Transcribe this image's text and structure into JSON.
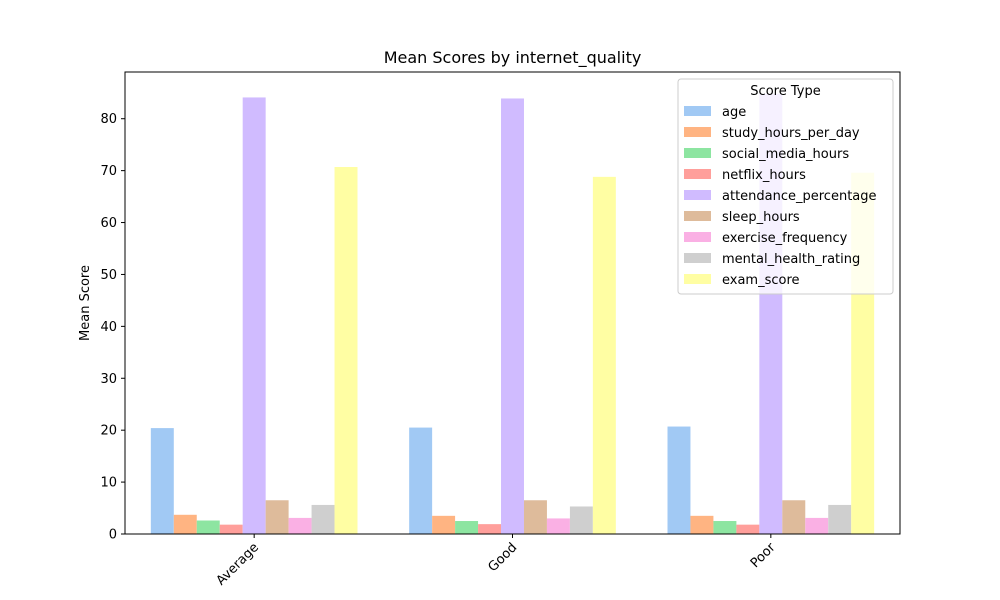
{
  "chart_data": {
    "type": "bar",
    "title": "Mean Scores by internet_quality",
    "xlabel": "",
    "ylabel": "Mean Score",
    "ylim": [
      0,
      89
    ],
    "yticks": [
      0,
      10,
      20,
      30,
      40,
      50,
      60,
      70,
      80
    ],
    "grid": false,
    "legend": {
      "title": "Score Type",
      "placement": "top-right"
    },
    "categories": [
      "Average",
      "Good",
      "Poor"
    ],
    "series": [
      {
        "name": "age",
        "color": "#a1c9f4",
        "values": [
          20.4,
          20.5,
          20.7
        ]
      },
      {
        "name": "study_hours_per_day",
        "color": "#ffb482",
        "values": [
          3.7,
          3.5,
          3.5
        ]
      },
      {
        "name": "social_media_hours",
        "color": "#8de5a1",
        "values": [
          2.6,
          2.5,
          2.5
        ]
      },
      {
        "name": "netflix_hours",
        "color": "#ff9f9b",
        "values": [
          1.8,
          1.9,
          1.8
        ]
      },
      {
        "name": "attendance_percentage",
        "color": "#d0bbff",
        "values": [
          84.1,
          83.9,
          84.8
        ]
      },
      {
        "name": "sleep_hours",
        "color": "#debb9b",
        "values": [
          6.5,
          6.5,
          6.5
        ]
      },
      {
        "name": "exercise_frequency",
        "color": "#fab0e4",
        "values": [
          3.1,
          3.0,
          3.1
        ]
      },
      {
        "name": "mental_health_rating",
        "color": "#cfcfcf",
        "values": [
          5.6,
          5.3,
          5.6
        ]
      },
      {
        "name": "exam_score",
        "color": "#fffea3",
        "values": [
          70.7,
          68.8,
          69.6
        ]
      }
    ]
  }
}
